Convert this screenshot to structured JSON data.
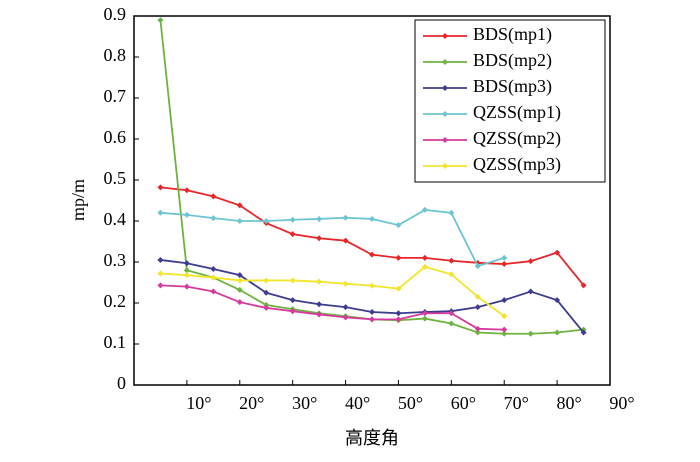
{
  "chart_data": {
    "type": "line",
    "x_label": "高度角",
    "y_label": "mp/m",
    "x": [
      5,
      10,
      15,
      20,
      25,
      30,
      35,
      40,
      45,
      50,
      55,
      60,
      65,
      70,
      75,
      80,
      85
    ],
    "series": [
      {
        "name": "BDS(mp1)",
        "color": "#e8262a",
        "values": [
          0.482,
          0.475,
          0.46,
          0.438,
          0.395,
          0.368,
          0.358,
          0.352,
          0.318,
          0.31,
          0.31,
          0.303,
          0.298,
          0.295,
          0.302,
          0.323,
          0.243
        ]
      },
      {
        "name": "BDS(mp2)",
        "color": "#6db33f",
        "values": [
          0.89,
          0.28,
          0.262,
          0.232,
          0.195,
          0.185,
          0.175,
          0.168,
          0.16,
          0.158,
          0.162,
          0.15,
          0.128,
          0.125,
          0.125,
          0.128,
          0.135
        ]
      },
      {
        "name": "BDS(mp3)",
        "color": "#3d3c8f",
        "values": [
          0.305,
          0.297,
          0.283,
          0.268,
          0.225,
          0.207,
          0.197,
          0.19,
          0.178,
          0.175,
          0.178,
          0.18,
          0.19,
          0.207,
          0.228,
          0.207,
          0.128
        ]
      },
      {
        "name": "QZSS(mp1)",
        "color": "#6cc5d0",
        "values": [
          0.42,
          0.415,
          0.407,
          0.4,
          0.4,
          0.403,
          0.405,
          0.408,
          0.405,
          0.39,
          0.427,
          0.42,
          0.29,
          0.31,
          null,
          null,
          null
        ]
      },
      {
        "name": "QZSS(mp2)",
        "color": "#d6399e",
        "values": [
          0.243,
          0.24,
          0.228,
          0.202,
          0.188,
          0.18,
          0.172,
          0.165,
          0.16,
          0.16,
          0.175,
          0.175,
          0.137,
          0.135,
          null,
          null,
          null
        ]
      },
      {
        "name": "QZSS(mp3)",
        "color": "#f2e52c",
        "values": [
          0.272,
          0.268,
          0.262,
          0.255,
          0.255,
          0.255,
          0.252,
          0.247,
          0.242,
          0.235,
          0.288,
          0.27,
          0.215,
          0.168,
          null,
          null,
          null
        ]
      }
    ],
    "xlim": [
      0,
      90
    ],
    "xticks": [
      {
        "value": 10,
        "label": "10°"
      },
      {
        "value": 20,
        "label": "20°"
      },
      {
        "value": 30,
        "label": "30°"
      },
      {
        "value": 40,
        "label": "40°"
      },
      {
        "value": 50,
        "label": "50°"
      },
      {
        "value": 60,
        "label": "60°"
      },
      {
        "value": 70,
        "label": "70°"
      },
      {
        "value": 80,
        "label": "80°"
      },
      {
        "value": 90,
        "label": "90°"
      }
    ],
    "ylim": [
      0,
      0.9
    ],
    "yticks": [
      0,
      0.1,
      0.2,
      0.3,
      0.4,
      0.5,
      0.6,
      0.7,
      0.8,
      0.9
    ],
    "grid": false,
    "legend": "upper right"
  }
}
